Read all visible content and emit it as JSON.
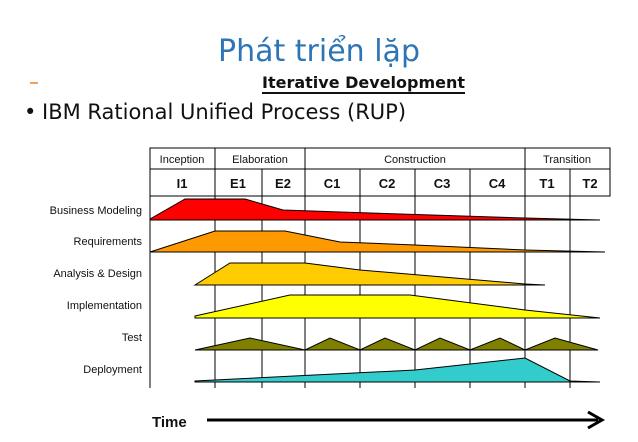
{
  "slide": {
    "title": "Phát triển lặp",
    "subtitle": "Iterative Development",
    "bullet": "IBM Rational Unified Process  (RUP)"
  },
  "diagram": {
    "phases": [
      "Inception",
      "Elaboration",
      "Construction",
      "Transition"
    ],
    "iterations": [
      "I1",
      "E1",
      "E2",
      "C1",
      "C2",
      "C3",
      "C4",
      "T1",
      "T2"
    ],
    "disciplines": [
      {
        "name": "Business Modeling",
        "color": "#ff0000"
      },
      {
        "name": "Requirements",
        "color": "#ff9900"
      },
      {
        "name": "Analysis & Design",
        "color": "#ffcc00"
      },
      {
        "name": "Implementation",
        "color": "#ffff00"
      },
      {
        "name": "Test",
        "color": "#808000"
      },
      {
        "name": "Deployment",
        "color": "#33cccc"
      }
    ],
    "time_label": "Time"
  }
}
